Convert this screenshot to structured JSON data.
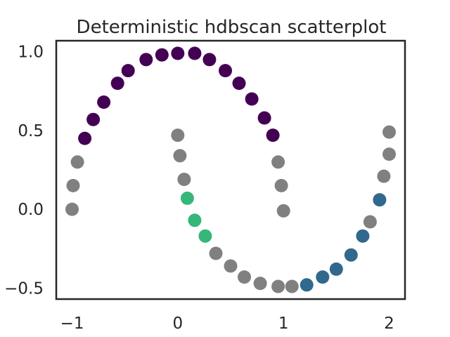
{
  "chart_data": {
    "type": "scatter",
    "title": "Deterministic hdbscan scatterplot",
    "xlabel": "",
    "ylabel": "",
    "xlim": [
      -1.15,
      2.15
    ],
    "ylim": [
      -0.57,
      1.07
    ],
    "grid": false,
    "legend": "none",
    "x_ticks": [
      {
        "value": -1,
        "label": "−1"
      },
      {
        "value": 0,
        "label": "0"
      },
      {
        "value": 1,
        "label": "1"
      },
      {
        "value": 2,
        "label": "2"
      }
    ],
    "y_ticks": [
      {
        "value": -0.5,
        "label": "−0.5"
      },
      {
        "value": 0.0,
        "label": "0.0"
      },
      {
        "value": 0.5,
        "label": "0.5"
      },
      {
        "value": 1.0,
        "label": "1.0"
      }
    ],
    "cluster_colors": {
      "noise": "#808080",
      "0": "#440154",
      "1": "#31688e",
      "2": "#35b779"
    },
    "points": [
      {
        "x": -1.0,
        "y": 0.0,
        "cluster": "noise"
      },
      {
        "x": -0.99,
        "y": 0.15,
        "cluster": "noise"
      },
      {
        "x": -0.95,
        "y": 0.3,
        "cluster": "noise"
      },
      {
        "x": -0.88,
        "y": 0.45,
        "cluster": "0"
      },
      {
        "x": -0.8,
        "y": 0.57,
        "cluster": "0"
      },
      {
        "x": -0.7,
        "y": 0.68,
        "cluster": "0"
      },
      {
        "x": -0.57,
        "y": 0.8,
        "cluster": "0"
      },
      {
        "x": -0.47,
        "y": 0.88,
        "cluster": "0"
      },
      {
        "x": -0.3,
        "y": 0.95,
        "cluster": "0"
      },
      {
        "x": -0.15,
        "y": 0.98,
        "cluster": "0"
      },
      {
        "x": 0.0,
        "y": 0.99,
        "cluster": "0"
      },
      {
        "x": 0.16,
        "y": 0.99,
        "cluster": "0"
      },
      {
        "x": 0.3,
        "y": 0.95,
        "cluster": "0"
      },
      {
        "x": 0.45,
        "y": 0.88,
        "cluster": "0"
      },
      {
        "x": 0.58,
        "y": 0.8,
        "cluster": "0"
      },
      {
        "x": 0.7,
        "y": 0.7,
        "cluster": "0"
      },
      {
        "x": 0.82,
        "y": 0.58,
        "cluster": "0"
      },
      {
        "x": 0.9,
        "y": 0.47,
        "cluster": "0"
      },
      {
        "x": 0.95,
        "y": 0.3,
        "cluster": "noise"
      },
      {
        "x": 0.98,
        "y": 0.15,
        "cluster": "noise"
      },
      {
        "x": 1.0,
        "y": -0.01,
        "cluster": "noise"
      },
      {
        "x": 0.0,
        "y": 0.47,
        "cluster": "noise"
      },
      {
        "x": 0.02,
        "y": 0.34,
        "cluster": "noise"
      },
      {
        "x": 0.06,
        "y": 0.19,
        "cluster": "noise"
      },
      {
        "x": 0.09,
        "y": 0.07,
        "cluster": "2"
      },
      {
        "x": 0.16,
        "y": -0.07,
        "cluster": "2"
      },
      {
        "x": 0.26,
        "y": -0.17,
        "cluster": "2"
      },
      {
        "x": 0.36,
        "y": -0.28,
        "cluster": "noise"
      },
      {
        "x": 0.5,
        "y": -0.36,
        "cluster": "noise"
      },
      {
        "x": 0.63,
        "y": -0.43,
        "cluster": "noise"
      },
      {
        "x": 0.78,
        "y": -0.47,
        "cluster": "noise"
      },
      {
        "x": 0.95,
        "y": -0.49,
        "cluster": "noise"
      },
      {
        "x": 1.08,
        "y": -0.49,
        "cluster": "noise"
      },
      {
        "x": 1.22,
        "y": -0.48,
        "cluster": "1"
      },
      {
        "x": 1.37,
        "y": -0.43,
        "cluster": "1"
      },
      {
        "x": 1.5,
        "y": -0.38,
        "cluster": "1"
      },
      {
        "x": 1.64,
        "y": -0.29,
        "cluster": "1"
      },
      {
        "x": 1.75,
        "y": -0.17,
        "cluster": "1"
      },
      {
        "x": 1.91,
        "y": 0.06,
        "cluster": "1"
      },
      {
        "x": 1.82,
        "y": -0.08,
        "cluster": "noise"
      },
      {
        "x": 1.95,
        "y": 0.21,
        "cluster": "noise"
      },
      {
        "x": 2.0,
        "y": 0.35,
        "cluster": "noise"
      },
      {
        "x": 2.0,
        "y": 0.49,
        "cluster": "noise"
      }
    ]
  }
}
